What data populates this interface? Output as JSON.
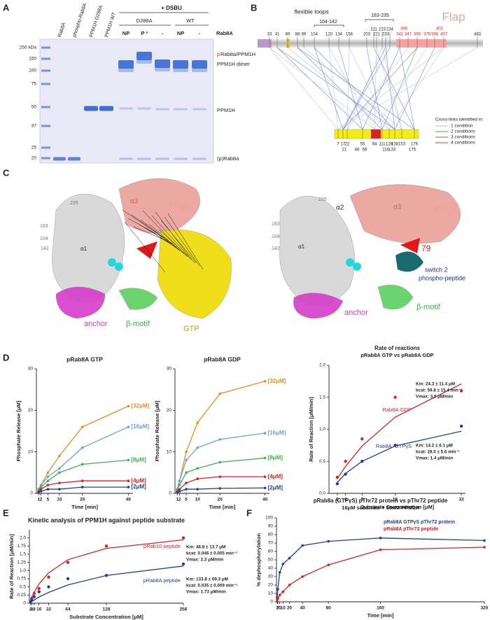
{
  "panel_labels": [
    "A",
    "B",
    "C",
    "D",
    "E",
    "F"
  ],
  "gel": {
    "header": "+ DSBU",
    "groups": [
      "D288A",
      "WT"
    ],
    "lanes": [
      "Rab8A",
      "phospho-Rab8A",
      "PPM1H D288A",
      "PPM1H WT"
    ],
    "treatments": [
      "NP",
      "P",
      "*",
      "-",
      "NP",
      "-"
    ],
    "row_label": "Rab8A",
    "markers": [
      "250 kDa",
      "150",
      "100",
      "75",
      "50",
      "37",
      "25",
      "20"
    ],
    "band_labels": [
      "p",
      "Rab8a/PPM1H",
      "PPM1H dimer",
      "PPM1H",
      "(p)Rab8a"
    ]
  },
  "crosslinks": {
    "loops_title": "flexible loops",
    "loops": [
      "104-142",
      "183-235"
    ],
    "flap": "Flap",
    "residues_top": [
      "33",
      "41",
      "69",
      "88",
      "89",
      "104",
      "120",
      "134",
      "156",
      "203",
      "221",
      "233",
      "483"
    ],
    "residues_top_upper": [
      "211",
      "223",
      "234"
    ],
    "residues_flap": [
      "342",
      "347",
      "369",
      "379",
      "398",
      "407"
    ],
    "residues_flap_upper": [
      "346",
      "402"
    ],
    "residues_rab": [
      "7",
      "17",
      "22",
      "55",
      "94",
      "111",
      "128",
      "138",
      "153",
      "176"
    ],
    "residues_rab_lower": [
      "21",
      "46",
      "58",
      "116",
      "133",
      "175"
    ],
    "legend_title": "Cross-links identified in:",
    "legend": [
      {
        "name": "1 condition",
        "color": "#b8b8b8"
      },
      {
        "name": "2 conditions",
        "color": "#3cb44b"
      },
      {
        "name": "3 conditions",
        "color": "#4a6cd4"
      },
      {
        "name": "4 conditions",
        "color": "#e0304a"
      }
    ]
  },
  "structures": {
    "left": [
      "235",
      "183",
      "104",
      "142",
      "α1",
      "α3",
      "Flap",
      "anchor",
      "β-motif",
      "GTP"
    ],
    "right": [
      "α2",
      "235",
      "183",
      "104",
      "142",
      "α1",
      "α3",
      "Flap",
      "79",
      "switch 2",
      "phospho-peptide",
      "β-motif",
      "anchor"
    ]
  },
  "chart_data": [
    {
      "type": "line",
      "title": "pRab8A GTP",
      "xlabel": "Time [min]",
      "ylabel": "Phosphate Release [μM]",
      "x": [
        1,
        2,
        5,
        10,
        20,
        40
      ],
      "xlim": [
        0,
        42
      ],
      "xticks": [
        1,
        2,
        5,
        10,
        20,
        40
      ],
      "ylim": [
        0,
        30
      ],
      "yticks": [
        0,
        10,
        20,
        30
      ],
      "series": [
        {
          "name": "[32μM]",
          "color": "#f28c1e",
          "values": [
            1,
            2,
            5,
            9,
            16,
            21
          ]
        },
        {
          "name": "[16μM]",
          "color": "#6aa3d8",
          "values": [
            1,
            2,
            4,
            6,
            11,
            16
          ]
        },
        {
          "name": "[8μM]",
          "color": "#3cb44b",
          "values": [
            1,
            1.5,
            3,
            5,
            7,
            8
          ]
        },
        {
          "name": "[4μM]",
          "color": "#e02020",
          "values": [
            0.5,
            1,
            2,
            2.5,
            3,
            3
          ]
        },
        {
          "name": "[2μM]",
          "color": "#1f3f9f",
          "values": [
            0.3,
            0.5,
            1,
            1,
            1.5,
            1.5
          ]
        }
      ]
    },
    {
      "type": "line",
      "title": "pRab8A GDP",
      "xlabel": "Time [min]",
      "ylabel": "Phosphate Release [μM]",
      "x": [
        1,
        2,
        5,
        10,
        20,
        40
      ],
      "xlim": [
        0,
        42
      ],
      "xticks": [
        1,
        2,
        5,
        10,
        20,
        40
      ],
      "ylim": [
        0,
        30
      ],
      "yticks": [
        0,
        10,
        20,
        30
      ],
      "series": [
        {
          "name": "[32μM]",
          "color": "#f28c1e",
          "values": [
            1,
            3,
            10,
            17,
            24,
            27
          ]
        },
        {
          "name": "[16μM]",
          "color": "#6aa3d8",
          "values": [
            1,
            3,
            8,
            11,
            13,
            14.5
          ]
        },
        {
          "name": "[8μM]",
          "color": "#3cb44b",
          "values": [
            1,
            2,
            5,
            6,
            7.5,
            8.5
          ]
        },
        {
          "name": "[4μM]",
          "color": "#e02020",
          "values": [
            0.5,
            1,
            2.5,
            3.5,
            4,
            4
          ]
        },
        {
          "name": "[2μM]",
          "color": "#1f3f9f",
          "values": [
            0.3,
            0.5,
            1,
            1,
            1.2,
            1.3
          ]
        }
      ]
    },
    {
      "type": "scatter",
      "title": "Rate of reactions",
      "subtitle": "pRab8A GTP vs pRab8A GDP",
      "xlabel": "Substrate Concentration   [μM]",
      "ylabel": "Rate of Reaction  [μM/min]",
      "x": [
        2,
        4,
        8,
        16,
        32
      ],
      "xlim": [
        0,
        33
      ],
      "xticks": [
        2,
        4,
        8,
        16,
        32
      ],
      "ylim": [
        0,
        2
      ],
      "yticks": [
        {
          "value": 0,
          "label": "0.0"
        },
        0.5,
        {
          "value": 1,
          "label": "1.0"
        },
        1.5,
        {
          "value": 2,
          "label": "2.0"
        }
      ],
      "series": [
        {
          "name": "Rab8A-GDP",
          "color": "#e02020",
          "values": [
            0.25,
            0.5,
            0.85,
            1.5,
            1.6
          ],
          "fit": [
            0.23,
            0.42,
            0.74,
            1.19,
            1.71
          ],
          "stats": [
            "Km: 24.3 ± 11.4 μM",
            "kcat: 59.8 ± 15.4 min⁻¹",
            "Vmax: 3.0 μM/min"
          ]
        },
        {
          "name": "Rab8A -GTPγS",
          "color": "#1f3f9f",
          "values": [
            0.15,
            0.3,
            0.5,
            0.75,
            1.05
          ],
          "fit": [
            0.17,
            0.31,
            0.5,
            0.74,
            0.97
          ],
          "stats": [
            "Km: 14.2 ± 6.1 μM",
            "kcat: 28.0 ± 5.6 min⁻¹",
            "Vmax: 1.4 μM/min"
          ]
        }
      ]
    },
    {
      "type": "scatter",
      "title": "Kinetic analysis of PPM1H against peptide substrate",
      "xlabel": "Substrate Concentration  [μM]",
      "ylabel": "Rate of Reaction [μM/min]",
      "x": [
        2,
        4,
        8,
        16,
        32,
        64,
        128,
        256
      ],
      "xlim": [
        0,
        256
      ],
      "xticks": [
        2,
        4,
        8,
        16,
        32,
        64,
        128,
        256
      ],
      "ylim": [
        0,
        2.25
      ],
      "yticks": [
        0,
        0.25,
        0.5,
        0.75,
        {
          "value": 1,
          "label": "1.0"
        },
        1.25,
        1.5,
        1.75,
        {
          "value": 2,
          "label": "2.0"
        }
      ],
      "series": [
        {
          "name": "pRab10 peptide",
          "color": "#e02020",
          "values": [
            0.05,
            0.15,
            0.3,
            0.45,
            0.8,
            1.25,
            1.75,
            2.0
          ],
          "fit": [
            0.094,
            0.18,
            0.34,
            0.59,
            0.93,
            1.33,
            1.68,
            1.94
          ],
          "stats": [
            "Km: 46.8 ± 13.7 μM",
            "kcat: 0.046 ± 0.005 min⁻¹",
            "Vmax: 2.3 μM/min"
          ]
        },
        {
          "name": "pRab8A peptide",
          "color": "#1f3f9f",
          "values": [
            0.05,
            0.1,
            0.2,
            0.35,
            0.5,
            0.75,
            0.85,
            1.2
          ],
          "fit": [
            0.026,
            0.05,
            0.1,
            0.19,
            0.33,
            0.56,
            0.85,
            1.14
          ],
          "stats": [
            "Km: 133.8 ± 69.3 μM",
            "kcat: 0.035 ± 0.009 min⁻¹",
            "Vmax: 1.73 μM/min"
          ]
        }
      ]
    },
    {
      "type": "line",
      "title": "pRab8a (GTPγS) pThr72 protein vs pThr72 peptide",
      "subtitle": "16μM substrate + 50nM PPM1H",
      "xlabel": "Time [min]",
      "ylabel": "% dephosphorylation",
      "x": [
        1,
        2,
        5,
        10,
        20,
        40,
        80,
        160,
        320
      ],
      "xlim": [
        0,
        320
      ],
      "xticks": [
        1,
        2,
        5,
        10,
        20,
        40,
        80,
        160,
        320
      ],
      "ylim": [
        0,
        100
      ],
      "yticks": [
        0,
        10,
        20,
        30,
        40,
        50,
        60,
        70,
        80,
        90,
        100
      ],
      "series": [
        {
          "name": "pRab8A GTPγS pThr72 protein",
          "color": "#1f3f9f",
          "values": [
            5,
            15,
            35,
            45,
            52,
            67,
            72,
            76,
            73
          ]
        },
        {
          "name": "pRab8A pThr72 peptide",
          "color": "#e02020",
          "values": [
            2,
            4,
            8,
            12,
            20,
            30,
            44,
            62,
            65
          ]
        }
      ]
    }
  ]
}
